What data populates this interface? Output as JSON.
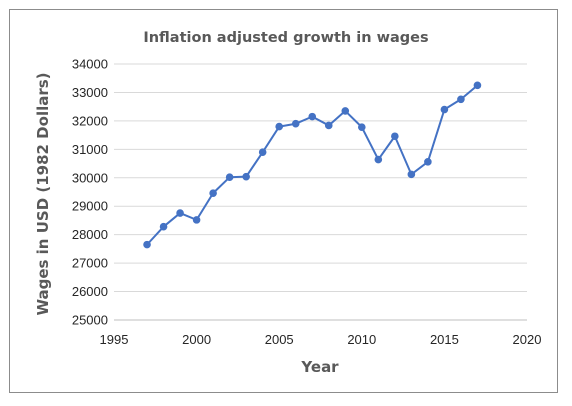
{
  "chart_data": {
    "type": "scatter",
    "title": "Inflation adjusted growth in wages",
    "xlabel": "Year",
    "ylabel": "Wages in USD (1982 Dollars)",
    "xlim": [
      1995,
      2020
    ],
    "ylim": [
      25000,
      34000
    ],
    "xticks": [
      1995,
      2000,
      2005,
      2010,
      2015,
      2020
    ],
    "yticks": [
      25000,
      26000,
      27000,
      28000,
      29000,
      30000,
      31000,
      32000,
      33000,
      34000
    ],
    "grid": "horizontal",
    "legend": "none",
    "marker": "circle",
    "line": "straight",
    "color": "#4472c4",
    "series": [
      {
        "x": [
          1997,
          1998,
          1999,
          2000,
          2001,
          2002,
          2003,
          2004,
          2005,
          2006,
          2007,
          2008,
          2009,
          2010,
          2011,
          2012,
          2013,
          2014,
          2015,
          2016,
          2017
        ],
        "y": [
          27650,
          28280,
          28760,
          28520,
          29460,
          30020,
          30040,
          30900,
          31800,
          31900,
          32150,
          31840,
          32350,
          31780,
          30640,
          31460,
          30120,
          30560,
          32400,
          32760,
          33250
        ]
      }
    ]
  }
}
